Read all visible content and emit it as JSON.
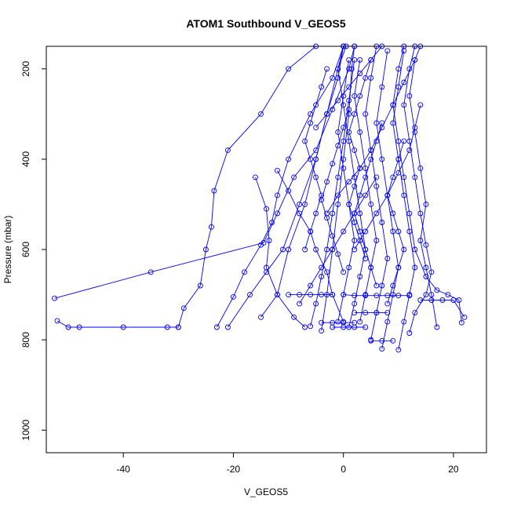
{
  "chart_data": {
    "type": "line",
    "title": "ATOM1 Southbound V_GEOS5",
    "xlabel": "V_GEOS5",
    "ylabel": "Pressure (mbar)",
    "xlim": [
      -54,
      26
    ],
    "ylim": [
      1050,
      150
    ],
    "y_reversed": true,
    "grid": false,
    "marker": "open-circle",
    "color": "#0000ff",
    "xticks": [
      {
        "value": -40,
        "label": "-40"
      },
      {
        "value": -20,
        "label": "-20"
      },
      {
        "value": 0,
        "label": "0"
      },
      {
        "value": 20,
        "label": "20"
      }
    ],
    "yticks": [
      {
        "value": 200,
        "label": "200"
      },
      {
        "value": 400,
        "label": "400"
      },
      {
        "value": 600,
        "label": "600"
      },
      {
        "value": 800,
        "label": "800"
      },
      {
        "value": 1000,
        "label": "1000"
      }
    ],
    "series": [
      {
        "points": [
          [
            -52.5,
            708
          ],
          [
            -35,
            650
          ],
          [
            -14.5,
            585
          ],
          [
            -12,
            520
          ],
          [
            -9,
            440
          ],
          [
            -5,
            380
          ],
          [
            -2,
            290
          ],
          [
            1,
            200
          ],
          [
            2,
            150
          ]
        ]
      },
      {
        "points": [
          [
            -52,
            758
          ],
          [
            -50,
            772
          ],
          [
            -48,
            772
          ],
          [
            -40,
            772
          ],
          [
            -32,
            772
          ],
          [
            -30,
            772
          ]
        ]
      },
      {
        "points": [
          [
            -30,
            772
          ],
          [
            -29,
            730
          ],
          [
            -26,
            680
          ],
          [
            -25,
            600
          ],
          [
            -24,
            550
          ],
          [
            -23.5,
            470
          ],
          [
            -21,
            380
          ],
          [
            -15,
            300
          ],
          [
            -10,
            200
          ],
          [
            -5,
            150
          ]
        ]
      },
      {
        "points": [
          [
            -23,
            772
          ],
          [
            -20,
            705
          ],
          [
            -18,
            650
          ],
          [
            -15,
            590
          ],
          [
            -13,
            540
          ],
          [
            -12,
            480
          ],
          [
            -10,
            400
          ],
          [
            -6,
            300
          ],
          [
            -2,
            220
          ],
          [
            0,
            150
          ]
        ]
      },
      {
        "points": [
          [
            -21,
            772
          ],
          [
            -17,
            700
          ],
          [
            -14,
            650
          ],
          [
            -11,
            600
          ],
          [
            -8,
            500
          ],
          [
            -5,
            400
          ],
          [
            -3,
            300
          ],
          [
            -1,
            220
          ],
          [
            0,
            150
          ]
        ]
      },
      {
        "points": [
          [
            -15,
            750
          ],
          [
            -12,
            700
          ],
          [
            -10,
            600
          ],
          [
            -7,
            500
          ],
          [
            -5,
            400
          ],
          [
            -3,
            300
          ],
          [
            -1,
            200
          ],
          [
            0.5,
            150
          ]
        ]
      },
      {
        "points": [
          [
            -16,
            440
          ],
          [
            -14,
            510
          ],
          [
            -13.5,
            580
          ],
          [
            -14,
            640
          ],
          [
            -12,
            700
          ],
          [
            -9,
            750
          ],
          [
            -7,
            772
          ]
        ]
      },
      {
        "points": [
          [
            -12,
            425
          ],
          [
            -10,
            470
          ],
          [
            -8,
            520
          ],
          [
            -6,
            560
          ],
          [
            -5,
            600
          ],
          [
            -3,
            650
          ],
          [
            -2,
            700
          ],
          [
            0,
            760
          ]
        ]
      },
      {
        "points": [
          [
            -8,
            720
          ],
          [
            -6,
            680
          ],
          [
            -4,
            640
          ],
          [
            -2,
            600
          ],
          [
            0,
            560
          ],
          [
            2,
            520
          ],
          [
            4,
            480
          ],
          [
            6,
            440
          ]
        ]
      },
      {
        "points": [
          [
            -4,
            780
          ],
          [
            -3,
            700
          ],
          [
            -2,
            600
          ],
          [
            -1,
            500
          ],
          [
            0,
            400
          ],
          [
            1,
            300
          ],
          [
            1.5,
            200
          ],
          [
            2,
            150
          ]
        ]
      },
      {
        "points": [
          [
            -6,
            770
          ],
          [
            -5,
            720
          ],
          [
            -4,
            660
          ],
          [
            -3,
            600
          ],
          [
            -2,
            520
          ],
          [
            -1,
            440
          ],
          [
            0,
            360
          ],
          [
            1,
            270
          ],
          [
            2,
            180
          ]
        ]
      },
      {
        "points": [
          [
            -1,
            760
          ],
          [
            0,
            700
          ],
          [
            1,
            640
          ],
          [
            2,
            580
          ],
          [
            1,
            500
          ],
          [
            0,
            420
          ],
          [
            -1,
            340
          ],
          [
            0,
            260
          ],
          [
            1,
            180
          ]
        ]
      },
      {
        "points": [
          [
            1,
            772
          ],
          [
            2,
            720
          ],
          [
            3,
            660
          ],
          [
            4,
            600
          ],
          [
            3,
            520
          ],
          [
            2,
            440
          ],
          [
            1,
            360
          ],
          [
            0,
            280
          ],
          [
            -1,
            200
          ],
          [
            0,
            150
          ]
        ]
      },
      {
        "points": [
          [
            3,
            760
          ],
          [
            4,
            700
          ],
          [
            5,
            640
          ],
          [
            6,
            580
          ],
          [
            5,
            500
          ],
          [
            4,
            420
          ],
          [
            3,
            340
          ],
          [
            2,
            260
          ],
          [
            3,
            180
          ]
        ]
      },
      {
        "points": [
          [
            5,
            800
          ],
          [
            6,
            740
          ],
          [
            7,
            680
          ],
          [
            8,
            620
          ],
          [
            7,
            540
          ],
          [
            6,
            460
          ],
          [
            5,
            380
          ],
          [
            4,
            300
          ],
          [
            5,
            220
          ],
          [
            6,
            150
          ]
        ]
      },
      {
        "points": [
          [
            7,
            820
          ],
          [
            8,
            760
          ],
          [
            9,
            700
          ],
          [
            10,
            640
          ],
          [
            9,
            560
          ],
          [
            8,
            480
          ],
          [
            7,
            400
          ],
          [
            6,
            320
          ],
          [
            7,
            240
          ],
          [
            8,
            160
          ]
        ]
      },
      {
        "points": [
          [
            10,
            822
          ],
          [
            11,
            760
          ],
          [
            12,
            700
          ],
          [
            13,
            640
          ],
          [
            12,
            560
          ],
          [
            11,
            480
          ],
          [
            10,
            400
          ],
          [
            9,
            320
          ],
          [
            10,
            240
          ],
          [
            11,
            160
          ]
        ]
      },
      {
        "points": [
          [
            12,
            785
          ],
          [
            13,
            740
          ],
          [
            15,
            700
          ],
          [
            16,
            650
          ],
          [
            15,
            590
          ],
          [
            14,
            520
          ],
          [
            13,
            440
          ],
          [
            12,
            360
          ],
          [
            11,
            280
          ],
          [
            12,
            200
          ],
          [
            13,
            150
          ]
        ]
      },
      {
        "points": [
          [
            17,
            772
          ],
          [
            16,
            700
          ],
          [
            15,
            640
          ],
          [
            14,
            580
          ],
          [
            15,
            500
          ],
          [
            14,
            420
          ],
          [
            13,
            340
          ],
          [
            12,
            260
          ],
          [
            13,
            180
          ]
        ]
      },
      {
        "points": [
          [
            21.5,
            762
          ],
          [
            21,
            712
          ],
          [
            19,
            700
          ],
          [
            17,
            690
          ],
          [
            15,
            660
          ],
          [
            13,
            600
          ],
          [
            12,
            520
          ],
          [
            11,
            440
          ],
          [
            10,
            360
          ],
          [
            9,
            280
          ],
          [
            10,
            200
          ],
          [
            11,
            150
          ]
        ]
      },
      {
        "points": [
          [
            22,
            750
          ],
          [
            20,
            712
          ],
          [
            18,
            712
          ],
          [
            16,
            712
          ],
          [
            14,
            712
          ]
        ]
      },
      {
        "points": [
          [
            0,
            700
          ],
          [
            2,
            702
          ],
          [
            4,
            702
          ],
          [
            6,
            702
          ],
          [
            8,
            702
          ],
          [
            10,
            702
          ],
          [
            12,
            702
          ]
        ]
      },
      {
        "points": [
          [
            -2,
            700
          ],
          [
            -4,
            700
          ],
          [
            -6,
            700
          ],
          [
            -8,
            700
          ],
          [
            -10,
            700
          ]
        ]
      },
      {
        "points": [
          [
            2,
            740
          ],
          [
            4,
            740
          ],
          [
            6,
            740
          ],
          [
            8,
            740
          ]
        ]
      },
      {
        "points": [
          [
            -4,
            762
          ],
          [
            -2,
            762
          ],
          [
            0,
            762
          ],
          [
            2,
            762
          ]
        ]
      },
      {
        "points": [
          [
            -2,
            772
          ],
          [
            0,
            772
          ],
          [
            2,
            772
          ],
          [
            4,
            772
          ]
        ]
      },
      {
        "points": [
          [
            5,
            802
          ],
          [
            7,
            802
          ],
          [
            9,
            802
          ]
        ]
      },
      {
        "points": [
          [
            -3,
            520
          ],
          [
            -1,
            480
          ],
          [
            1,
            450
          ],
          [
            3,
            420
          ],
          [
            5,
            380
          ],
          [
            7,
            330
          ],
          [
            9,
            280
          ],
          [
            11,
            230
          ],
          [
            13,
            180
          ],
          [
            14,
            150
          ]
        ]
      },
      {
        "points": [
          [
            -5,
            330
          ],
          [
            -3,
            300
          ],
          [
            -1,
            270
          ],
          [
            1,
            240
          ],
          [
            3,
            210
          ],
          [
            5,
            180
          ],
          [
            7,
            150
          ]
        ]
      },
      {
        "points": [
          [
            2,
            600
          ],
          [
            4,
            560
          ],
          [
            6,
            520
          ],
          [
            8,
            480
          ],
          [
            10,
            430
          ],
          [
            12,
            380
          ],
          [
            13,
            330
          ],
          [
            14,
            280
          ]
        ]
      },
      {
        "points": [
          [
            0,
            650
          ],
          [
            -1,
            610
          ],
          [
            -2,
            570
          ],
          [
            -3,
            530
          ],
          [
            -4,
            490
          ],
          [
            -3,
            450
          ],
          [
            -2,
            410
          ],
          [
            -1,
            370
          ],
          [
            0,
            330
          ],
          [
            1,
            290
          ]
        ]
      },
      {
        "points": [
          [
            6,
            680
          ],
          [
            5,
            640
          ],
          [
            4,
            600
          ],
          [
            3,
            560
          ],
          [
            2,
            520
          ],
          [
            3,
            480
          ],
          [
            4,
            440
          ],
          [
            5,
            400
          ],
          [
            6,
            360
          ],
          [
            7,
            320
          ]
        ]
      },
      {
        "points": [
          [
            8,
            720
          ],
          [
            9,
            680
          ],
          [
            10,
            640
          ],
          [
            11,
            600
          ],
          [
            10,
            560
          ],
          [
            9,
            520
          ],
          [
            8,
            480
          ],
          [
            9,
            440
          ],
          [
            10,
            400
          ],
          [
            11,
            360
          ]
        ]
      },
      {
        "points": [
          [
            -7,
            600
          ],
          [
            -6,
            560
          ],
          [
            -5,
            520
          ],
          [
            -4,
            480
          ],
          [
            -5,
            440
          ],
          [
            -6,
            400
          ],
          [
            -7,
            360
          ],
          [
            -6,
            320
          ],
          [
            -5,
            280
          ],
          [
            -4,
            240
          ],
          [
            -3,
            200
          ]
        ]
      },
      {
        "points": [
          [
            4,
            620
          ],
          [
            3,
            580
          ],
          [
            2,
            540
          ],
          [
            1,
            500
          ],
          [
            2,
            460
          ],
          [
            3,
            420
          ],
          [
            2,
            380
          ],
          [
            1,
            340
          ],
          [
            2,
            300
          ],
          [
            3,
            260
          ],
          [
            4,
            220
          ],
          [
            5,
            180
          ]
        ]
      }
    ]
  }
}
